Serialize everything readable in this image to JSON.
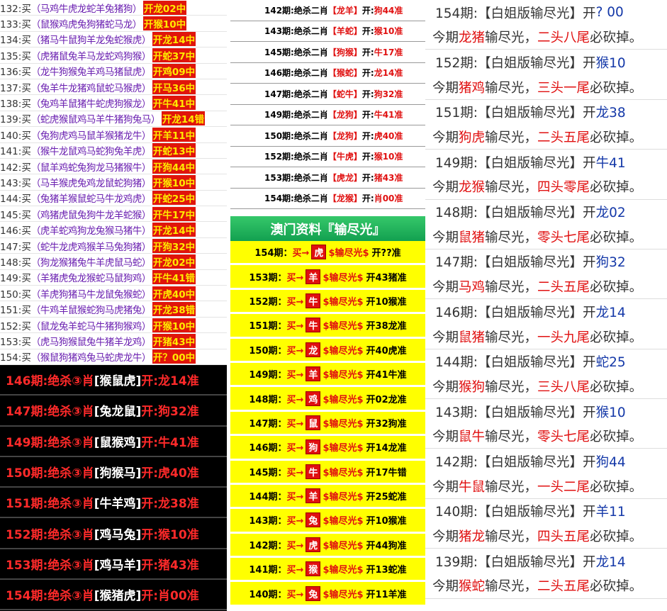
{
  "buy_list": {
    "rows": [
      {
        "id": "132:买",
        "pick": "（马鸡牛虎龙蛇羊兔猪狗）",
        "result": "开龙02中"
      },
      {
        "id": "133:买",
        "pick": "（鼠猴鸡虎兔狗猪蛇马龙）",
        "result": "开猴10中"
      },
      {
        "id": "134:买",
        "pick": "（猪马牛鼠狗羊龙兔蛇猴虎）",
        "result": "开龙14中"
      },
      {
        "id": "135:买",
        "pick": "（虎猪鼠兔羊马龙蛇鸡狗猴）",
        "result": "开蛇37中"
      },
      {
        "id": "136:买",
        "pick": "（龙牛狗猴兔羊鸡马猪鼠虎）",
        "result": "开鸡09中"
      },
      {
        "id": "137:买",
        "pick": "（兔羊牛龙猪鸡鼠蛇马猴虎）",
        "result": "开马36中"
      },
      {
        "id": "138:买",
        "pick": "（兔鸡羊鼠猪牛蛇虎狗猴龙）",
        "result": "开牛41中"
      },
      {
        "id": "139:买",
        "pick": "（蛇虎猴鼠鸡马羊牛猪狗兔马）",
        "result": "开龙14错"
      },
      {
        "id": "140:买",
        "pick": "（兔狗虎鸡马鼠羊猴猪龙牛）",
        "result": "开羊11中"
      },
      {
        "id": "141:买",
        "pick": "（猴牛龙鼠鸡马蛇狗兔羊虎）",
        "result": "开蛇13中"
      },
      {
        "id": "142:买",
        "pick": "（鼠羊鸡蛇兔狗龙马猪猴牛）",
        "result": "开狗44中"
      },
      {
        "id": "143:买",
        "pick": "（马羊猴虎兔鸡龙鼠蛇狗猪）",
        "result": "开猴10中"
      },
      {
        "id": "144:买",
        "pick": "（兔猪羊猴鼠蛇马牛龙鸡虎）",
        "result": "开蛇25中"
      },
      {
        "id": "145:买",
        "pick": "（鸡猪虎鼠兔狗牛龙羊蛇猴）",
        "result": "开牛17中"
      },
      {
        "id": "146:买",
        "pick": "（虎羊蛇鸡狗龙兔猴马猪牛）",
        "result": "开龙14中"
      },
      {
        "id": "147:买",
        "pick": "（蛇牛龙虎鸡猴羊马兔狗猪）",
        "result": "开狗32中"
      },
      {
        "id": "148:买",
        "pick": "（狗龙猴猪兔牛羊虎鼠马蛇）",
        "result": "开龙02中"
      },
      {
        "id": "149:买",
        "pick": "（羊猪虎兔龙猴蛇马鼠狗鸡）",
        "result": "开牛41错"
      },
      {
        "id": "150:买",
        "pick": "（羊虎狗猪马牛龙鼠兔猴蛇）",
        "result": "开虎40中"
      },
      {
        "id": "151:买",
        "pick": "（牛鸡羊鼠猴蛇狗马虎猪兔）",
        "result": "开龙38错"
      },
      {
        "id": "152:买",
        "pick": "（鼠龙兔羊蛇马牛猪狗猴鸡）",
        "result": "开猴10中"
      },
      {
        "id": "153:买",
        "pick": "（虎马狗猴鼠兔牛猪羊龙鸡）",
        "result": "开猪43中"
      },
      {
        "id": "154:买",
        "pick": "（猴鼠狗猪鸡兔马蛇虎龙牛）",
        "result": "开？00中"
      }
    ]
  },
  "kill_three": {
    "rows": [
      {
        "period": "146期:绝杀③肖",
        "pick": "[猴鼠虎]",
        "result": "开:龙14准"
      },
      {
        "period": "147期:绝杀③肖",
        "pick": "[兔龙鼠]",
        "result": "开:狗32准"
      },
      {
        "period": "149期:绝杀③肖",
        "pick": "[鼠猴鸡]",
        "result": "开:牛41准"
      },
      {
        "period": "150期:绝杀③肖",
        "pick": "[狗猴马]",
        "result": "开:虎40准"
      },
      {
        "period": "151期:绝杀③肖",
        "pick": "[牛羊鸡]",
        "result": "开:龙38准"
      },
      {
        "period": "152期:绝杀③肖",
        "pick": "[鸡马兔]",
        "result": "开:猴10准"
      },
      {
        "period": "153期:绝杀③肖",
        "pick": "[鸡马羊]",
        "result": "开:猪43准"
      },
      {
        "period": "154期:绝杀③肖",
        "pick": "[猴猪虎]",
        "result": "开:肖00准"
      }
    ]
  },
  "kill_two": {
    "open_label": "开:",
    "rows": [
      {
        "period": "142期:绝杀二肖",
        "pick": "【龙羊】",
        "result": "狗44准"
      },
      {
        "period": "143期:绝杀二肖",
        "pick": "【羊蛇】",
        "result": "猴10准"
      },
      {
        "period": "145期:绝杀二肖",
        "pick": "【狗猴】",
        "result": "牛17准"
      },
      {
        "period": "146期:绝杀二肖",
        "pick": "【猴蛇】",
        "result": "龙14准"
      },
      {
        "period": "147期:绝杀二肖",
        "pick": "【蛇牛】",
        "result": "狗32准"
      },
      {
        "period": "149期:绝杀二肖",
        "pick": "【龙狗】",
        "result": "牛41准"
      },
      {
        "period": "150期:绝杀二肖",
        "pick": "【龙狗】",
        "result": "虎40准"
      },
      {
        "period": "152期:绝杀二肖",
        "pick": "【牛虎】",
        "result": "猴10准"
      },
      {
        "period": "153期:绝杀二肖",
        "pick": "【虎龙】",
        "result": "猪43准"
      },
      {
        "period": "154期:绝杀二肖",
        "pick": "【龙猴】",
        "result": "肖00准"
      }
    ]
  },
  "macau": {
    "title": "澳门资料『输尽光』",
    "buy_label": "买→",
    "lose_label": "$输尽光$",
    "rows": [
      {
        "period": "154期：",
        "pick": "虎",
        "result": "开??准"
      },
      {
        "period": "153期：",
        "pick": "羊",
        "result": "开43猪准"
      },
      {
        "period": "152期：",
        "pick": "牛",
        "result": "开10猴准"
      },
      {
        "period": "151期：",
        "pick": "牛",
        "result": "开38龙准"
      },
      {
        "period": "150期：",
        "pick": "龙",
        "result": "开40虎准"
      },
      {
        "period": "149期：",
        "pick": "羊",
        "result": "开41牛准"
      },
      {
        "period": "148期：",
        "pick": "鸡",
        "result": "开02龙准"
      },
      {
        "period": "147期：",
        "pick": "鼠",
        "result": "开32狗准"
      },
      {
        "period": "146期：",
        "pick": "狗",
        "result": "开14龙准"
      },
      {
        "period": "145期：",
        "pick": "牛",
        "result": "开17牛错"
      },
      {
        "period": "144期：",
        "pick": "羊",
        "result": "开25蛇准"
      },
      {
        "period": "143期：",
        "pick": "兔",
        "result": "开10猴准"
      },
      {
        "period": "142期：",
        "pick": "虎",
        "result": "开44狗准"
      },
      {
        "period": "141期：",
        "pick": "猴",
        "result": "开13蛇准"
      },
      {
        "period": "140期：",
        "pick": "兔",
        "result": "开11羊准"
      }
    ]
  },
  "baijie": {
    "heading": "【白姐版输尽光】开",
    "line_start": "今期",
    "line_mid": "输尽光，",
    "line_end": "必砍掉。",
    "rows": [
      {
        "period": "154期:",
        "result": "? 00",
        "pair": "龙猪",
        "tail": "二头八尾"
      },
      {
        "period": "152期:",
        "result": "猴10",
        "pair": "猪鸡",
        "tail": "三头一尾"
      },
      {
        "period": "151期:",
        "result": "龙38",
        "pair": "狗虎",
        "tail": "二头五尾"
      },
      {
        "period": "149期:",
        "result": "牛41",
        "pair": "龙猴",
        "tail": "四头零尾"
      },
      {
        "period": "148期:",
        "result": "龙02",
        "pair": "鼠猪",
        "tail": "零头七尾"
      },
      {
        "period": "147期:",
        "result": "狗32",
        "pair": "马鸡",
        "tail": "二头五尾"
      },
      {
        "period": "146期:",
        "result": "龙14",
        "pair": "鼠猪",
        "tail": "一头九尾"
      },
      {
        "period": "144期:",
        "result": "蛇25",
        "pair": "猴狗",
        "tail": "三头八尾"
      },
      {
        "period": "143期:",
        "result": "猴10",
        "pair": "鼠牛",
        "tail": "零头七尾"
      },
      {
        "period": "142期:",
        "result": "狗44",
        "pair": "牛鼠",
        "tail": "一头二尾"
      },
      {
        "period": "140期:",
        "result": "羊11",
        "pair": "猪龙",
        "tail": "四头五尾"
      },
      {
        "period": "139期:",
        "result": "龙14",
        "pair": "猴蛇",
        "tail": "二头五尾"
      }
    ]
  }
}
